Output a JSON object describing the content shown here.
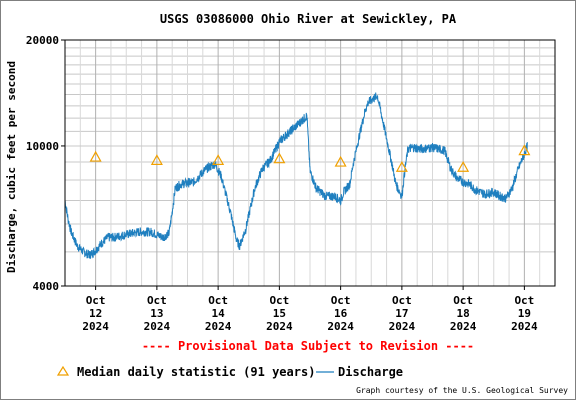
{
  "chart_data": {
    "type": "line",
    "title": "USGS 03086000 Ohio River at Sewickley, PA",
    "ylabel": "Discharge, cubic feet per second",
    "y_scale": "log",
    "ylim": [
      4000,
      20000
    ],
    "y_tick_labels": [
      "20000",
      "10000",
      "4000"
    ],
    "x_tick_labels": [
      [
        "Oct",
        "12",
        "2024"
      ],
      [
        "Oct",
        "13",
        "2024"
      ],
      [
        "Oct",
        "14",
        "2024"
      ],
      [
        "Oct",
        "15",
        "2024"
      ],
      [
        "Oct",
        "16",
        "2024"
      ],
      [
        "Oct",
        "17",
        "2024"
      ],
      [
        "Oct",
        "18",
        "2024"
      ],
      [
        "Oct",
        "19",
        "2024"
      ]
    ],
    "xlim_days": [
      11.5,
      19.5
    ],
    "grid": true,
    "colors": {
      "discharge": "#1f7fbf",
      "median": "#f0a000",
      "provisional": "#ff0000"
    },
    "series": [
      {
        "name": "Discharge",
        "x_days": [
          11.5,
          11.55,
          11.6,
          11.7,
          11.8,
          11.9,
          12.0,
          12.1,
          12.2,
          12.3,
          12.5,
          12.7,
          12.9,
          13.0,
          13.1,
          13.2,
          13.25,
          13.3,
          13.4,
          13.6,
          13.8,
          13.95,
          14.05,
          14.2,
          14.3,
          14.35,
          14.45,
          14.6,
          14.72,
          14.85,
          14.93,
          15.0,
          15.1,
          15.3,
          15.45,
          15.5,
          15.6,
          15.75,
          15.9,
          16.0,
          16.05,
          16.15,
          16.2,
          16.3,
          16.4,
          16.45,
          16.5,
          16.6,
          16.75,
          16.85,
          16.9,
          17.0,
          17.05,
          17.1,
          17.2,
          17.3,
          17.5,
          17.7,
          17.8,
          17.9,
          18.0,
          18.1,
          18.2,
          18.35,
          18.5,
          18.6,
          18.7,
          18.8,
          18.9,
          19.0,
          19.05
        ],
        "values": [
          7000,
          6200,
          5700,
          5200,
          5000,
          4900,
          5050,
          5300,
          5500,
          5500,
          5600,
          5700,
          5700,
          5600,
          5500,
          5650,
          6500,
          7600,
          7800,
          7900,
          8600,
          8900,
          8200,
          6500,
          5400,
          5200,
          5800,
          7600,
          8600,
          9100,
          9700,
          10300,
          10700,
          11500,
          12200,
          8500,
          7600,
          7200,
          7200,
          7000,
          7400,
          7800,
          8800,
          10600,
          12600,
          13300,
          13500,
          13900,
          10500,
          8700,
          7800,
          7200,
          8600,
          9800,
          9900,
          9800,
          9900,
          9700,
          8600,
          8100,
          7900,
          7800,
          7500,
          7300,
          7400,
          7200,
          7100,
          7600,
          8600,
          9500,
          10000
        ]
      },
      {
        "name": "Median daily statistic (91 years)",
        "x_days": [
          12.0,
          13.0,
          14.0,
          15.0,
          16.0,
          17.0,
          18.0,
          19.0
        ],
        "values": [
          9300,
          9100,
          9100,
          9200,
          9000,
          8700,
          8700,
          9700
        ]
      }
    ],
    "annotation": "---- Provisional Data Subject to Revision ----",
    "legend": [
      {
        "key": "median",
        "label": "Median daily statistic (91 years)",
        "symbol": "triangle-icon"
      },
      {
        "key": "discharge",
        "label": "Discharge",
        "symbol": "line-icon"
      }
    ],
    "legend_position": "bottom",
    "credit": "Graph courtesy of the U.S. Geological Survey"
  }
}
